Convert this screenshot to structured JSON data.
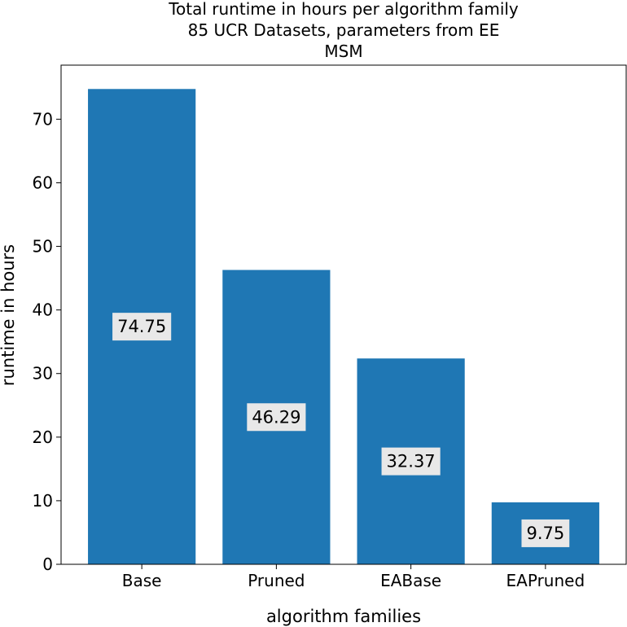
{
  "chart_data": {
    "type": "bar",
    "title_lines": [
      "Total runtime in hours per algorithm family",
      "85 UCR Datasets, parameters from EE",
      "MSM"
    ],
    "categories": [
      "Base",
      "Pruned",
      "EABase",
      "EAPruned"
    ],
    "values": [
      74.75,
      46.29,
      32.37,
      9.75
    ],
    "value_labels": [
      "74.75",
      "46.29",
      "32.37",
      "9.75"
    ],
    "xlabel": "algorithm families",
    "ylabel": "runtime in hours",
    "ylim": [
      0,
      78.5
    ],
    "yticks": [
      0,
      10,
      20,
      30,
      40,
      50,
      60,
      70
    ],
    "grid": false,
    "bar_color": "#1f77b4",
    "label_box_color": "#e8e8e8"
  }
}
